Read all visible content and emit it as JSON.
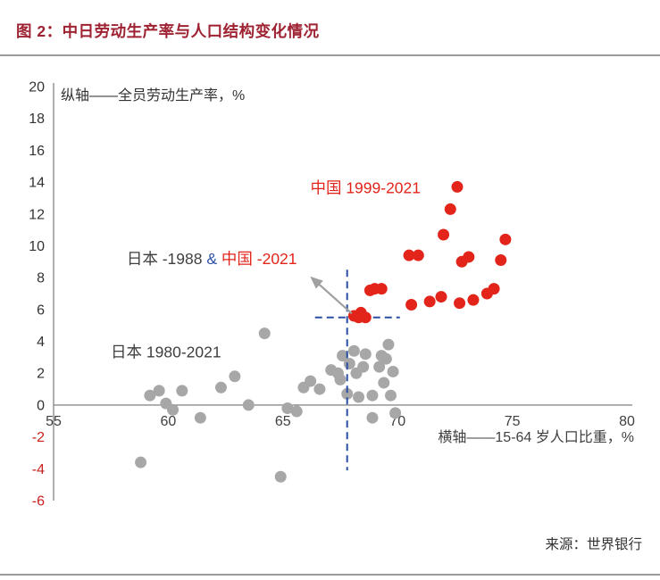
{
  "header": {
    "title": "图 2：中日劳动生产率与人口结构变化情况"
  },
  "footer": {
    "source": "来源：世界银行"
  },
  "colors": {
    "title": "#9E2232",
    "china_red": "#E3241B",
    "japan_gray": "#A7A7A7",
    "dashed_blue": "#2B4EA5",
    "ampersand_blue": "#2B4EA5",
    "dark_text": "#3F3F3F",
    "negative_tick_red": "#C9201D",
    "axis_line_gray": "#8C8C8C",
    "arrow_gray": "#A0A0A0"
  },
  "chart_data": {
    "type": "scatter",
    "title": "图 2：中日劳动生产率与人口结构变化情况",
    "xlabel": "横轴——15-64 岁人口比重，%",
    "ylabel": "纵轴——全员劳动生产率，%",
    "xlim": [
      55,
      80
    ],
    "ylim": [
      -6,
      20
    ],
    "x_ticks": [
      55,
      60,
      65,
      70,
      75,
      80
    ],
    "y_ticks": [
      20,
      18,
      16,
      14,
      12,
      10,
      8,
      6,
      4,
      2,
      0,
      -2,
      -4,
      -6
    ],
    "grid": false,
    "legend_position": "in-plot-annotations",
    "series": [
      {
        "name": "日本 1980-2021",
        "color_key": "japan_gray",
        "points": [
          [
            58.8,
            -3.6
          ],
          [
            59.2,
            0.6
          ],
          [
            59.6,
            0.9
          ],
          [
            59.9,
            0.1
          ],
          [
            60.2,
            -0.3
          ],
          [
            60.6,
            0.9
          ],
          [
            61.4,
            -0.8
          ],
          [
            62.3,
            1.1
          ],
          [
            62.9,
            1.8
          ],
          [
            63.5,
            0.0
          ],
          [
            64.2,
            4.5
          ],
          [
            64.9,
            -4.5
          ],
          [
            65.2,
            -0.2
          ],
          [
            65.6,
            -0.4
          ],
          [
            65.9,
            1.1
          ],
          [
            66.2,
            1.5
          ],
          [
            66.6,
            1.0
          ],
          [
            67.1,
            2.2
          ],
          [
            67.4,
            2.0
          ],
          [
            67.5,
            1.6
          ],
          [
            67.6,
            3.1
          ],
          [
            67.8,
            0.7
          ],
          [
            67.9,
            2.6
          ],
          [
            68.1,
            3.4
          ],
          [
            68.2,
            2.0
          ],
          [
            68.3,
            0.5
          ],
          [
            68.5,
            2.4
          ],
          [
            68.6,
            3.2
          ],
          [
            68.9,
            0.6
          ],
          [
            68.9,
            -0.8
          ],
          [
            69.2,
            2.4
          ],
          [
            69.3,
            3.1
          ],
          [
            69.4,
            1.4
          ],
          [
            69.5,
            2.9
          ],
          [
            69.6,
            3.8
          ],
          [
            69.7,
            0.6
          ],
          [
            69.8,
            2.1
          ],
          [
            69.9,
            -0.5
          ]
        ]
      },
      {
        "name": "中国 1999-2021",
        "color_key": "china_red",
        "points": [
          [
            68.1,
            5.6
          ],
          [
            68.3,
            5.5
          ],
          [
            68.4,
            5.8
          ],
          [
            68.6,
            5.5
          ],
          [
            68.8,
            7.2
          ],
          [
            69.0,
            7.3
          ],
          [
            69.3,
            7.3
          ],
          [
            70.5,
            9.4
          ],
          [
            70.6,
            6.3
          ],
          [
            70.9,
            9.4
          ],
          [
            71.4,
            6.5
          ],
          [
            71.9,
            6.8
          ],
          [
            72.0,
            10.7
          ],
          [
            72.3,
            12.3
          ],
          [
            72.6,
            13.7
          ],
          [
            72.7,
            6.4
          ],
          [
            72.8,
            9.0
          ],
          [
            73.1,
            9.3
          ],
          [
            73.3,
            6.6
          ],
          [
            73.9,
            7.0
          ],
          [
            74.2,
            7.3
          ],
          [
            74.5,
            9.1
          ],
          [
            74.7,
            10.4
          ]
        ]
      }
    ],
    "annotations": {
      "china_label": {
        "text": "中国 1999-2021",
        "x": 68.6,
        "y": 13.3
      },
      "japan_label": {
        "text": "日本 1980-2021",
        "x": 59.9,
        "y": 3.0
      },
      "intersection_label": {
        "x": 61.9,
        "y": 8.85,
        "parts": [
          {
            "text": "日本 -1988 ",
            "color_key": "dark_text"
          },
          {
            "text": "&",
            "color_key": "ampersand_blue"
          },
          {
            "text": " 中国 -2021",
            "color_key": "china_red"
          }
        ]
      },
      "crosshair": {
        "x": 67.8,
        "y": 5.5,
        "v_top": 8.5,
        "v_bottom": -4.1,
        "h_left": 66.4,
        "h_right": 70.1
      },
      "arrow": {
        "tail": [
          68.0,
          5.75
        ],
        "head": [
          66.25,
          8.0
        ]
      }
    }
  }
}
